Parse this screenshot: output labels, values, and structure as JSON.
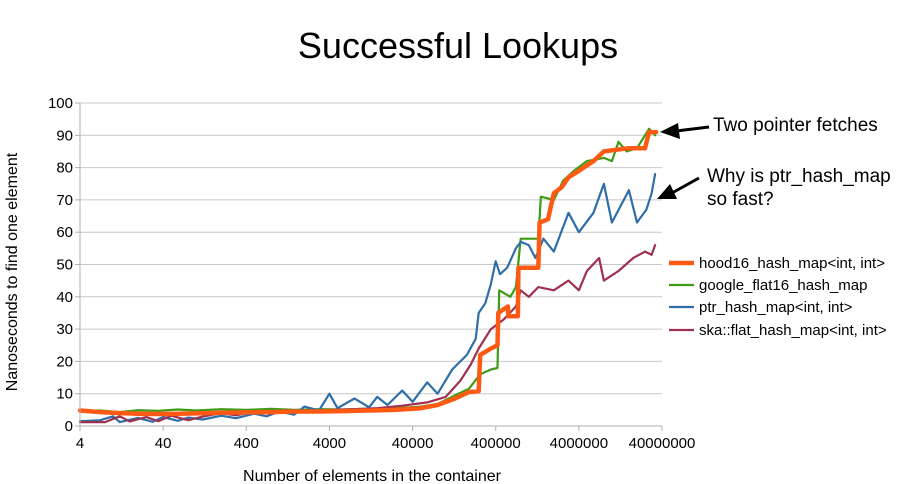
{
  "chart_data": {
    "type": "line",
    "title": "Successful Lookups",
    "xlabel": "Number of elements in the container",
    "ylabel": "Nanoseconds to find one element",
    "x_scale": "log",
    "xlim": [
      4,
      40000000
    ],
    "ylim": [
      0,
      100
    ],
    "x_ticks": [
      "4",
      "40",
      "400",
      "4000",
      "40000",
      "400000",
      "4000000",
      "40000000"
    ],
    "y_ticks": [
      "0",
      "10",
      "20",
      "30",
      "40",
      "50",
      "60",
      "70",
      "80",
      "90",
      "100"
    ],
    "grid": "horizontal",
    "legend_position": "right",
    "series": [
      {
        "name": "hood16_hash_map<int, int>",
        "color": "#ff5a14",
        "points": [
          [
            4,
            4.8
          ],
          [
            7,
            4.3
          ],
          [
            12,
            4.0
          ],
          [
            20,
            3.8
          ],
          [
            35,
            3.7
          ],
          [
            60,
            3.8
          ],
          [
            100,
            3.9
          ],
          [
            200,
            4.1
          ],
          [
            400,
            4.2
          ],
          [
            800,
            4.3
          ],
          [
            1500,
            4.5
          ],
          [
            3000,
            4.5
          ],
          [
            6000,
            4.6
          ],
          [
            12000,
            4.8
          ],
          [
            25000,
            5.0
          ],
          [
            50000,
            5.5
          ],
          [
            80000,
            6.5
          ],
          [
            130000,
            8.5
          ],
          [
            190000,
            10.5
          ],
          [
            250000,
            10.8
          ],
          [
            260000,
            22
          ],
          [
            350000,
            24
          ],
          [
            420000,
            25
          ],
          [
            430000,
            35
          ],
          [
            560000,
            37
          ],
          [
            570000,
            34
          ],
          [
            740000,
            34
          ],
          [
            750000,
            49
          ],
          [
            1300000,
            49
          ],
          [
            1350000,
            63
          ],
          [
            1700000,
            64
          ],
          [
            2000000,
            72
          ],
          [
            2500000,
            74
          ],
          [
            3000000,
            77
          ],
          [
            4000000,
            79
          ],
          [
            6000000,
            82
          ],
          [
            8000000,
            85
          ],
          [
            16000000,
            86
          ],
          [
            25000000,
            86
          ],
          [
            28000000,
            91
          ],
          [
            34000000,
            91
          ]
        ]
      },
      {
        "name": "google_flat16_hash_map",
        "color": "#3d9b14",
        "points": [
          [
            4,
            4.5
          ],
          [
            7,
            4.8
          ],
          [
            12,
            4.3
          ],
          [
            20,
            4.9
          ],
          [
            35,
            4.7
          ],
          [
            60,
            5.1
          ],
          [
            100,
            4.8
          ],
          [
            200,
            5.2
          ],
          [
            400,
            5.0
          ],
          [
            800,
            5.3
          ],
          [
            1500,
            5.0
          ],
          [
            3000,
            5.2
          ],
          [
            6000,
            5.1
          ],
          [
            12000,
            5.4
          ],
          [
            25000,
            5.5
          ],
          [
            50000,
            6.0
          ],
          [
            80000,
            6.8
          ],
          [
            130000,
            9.5
          ],
          [
            190000,
            11.5
          ],
          [
            260000,
            16
          ],
          [
            350000,
            17.5
          ],
          [
            420000,
            18
          ],
          [
            440000,
            42
          ],
          [
            600000,
            40
          ],
          [
            700000,
            43
          ],
          [
            800000,
            58
          ],
          [
            1300000,
            58
          ],
          [
            1400000,
            71
          ],
          [
            2000000,
            70
          ],
          [
            2600000,
            76
          ],
          [
            3500000,
            79
          ],
          [
            5000000,
            82
          ],
          [
            8000000,
            83
          ],
          [
            10000000,
            82
          ],
          [
            12000000,
            88
          ],
          [
            15000000,
            85
          ],
          [
            20000000,
            86
          ],
          [
            28000000,
            92
          ],
          [
            33000000,
            90
          ]
        ]
      },
      {
        "name": "ptr_hash_map<int, int>",
        "color": "#2f6ea8",
        "points": [
          [
            4,
            1.5
          ],
          [
            7,
            1.8
          ],
          [
            10,
            3.0
          ],
          [
            12,
            1.2
          ],
          [
            20,
            2.5
          ],
          [
            30,
            1.3
          ],
          [
            40,
            2.8
          ],
          [
            60,
            1.6
          ],
          [
            80,
            2.6
          ],
          [
            120,
            2.0
          ],
          [
            200,
            3.2
          ],
          [
            300,
            2.4
          ],
          [
            500,
            3.8
          ],
          [
            700,
            3.0
          ],
          [
            1000,
            4.5
          ],
          [
            1500,
            3.5
          ],
          [
            2000,
            6.0
          ],
          [
            3000,
            4.8
          ],
          [
            4000,
            10.0
          ],
          [
            5000,
            5.5
          ],
          [
            8000,
            8.5
          ],
          [
            12000,
            5.8
          ],
          [
            15000,
            9.0
          ],
          [
            20000,
            6.5
          ],
          [
            30000,
            11.0
          ],
          [
            40000,
            7.5
          ],
          [
            60000,
            13.5
          ],
          [
            80000,
            10.0
          ],
          [
            120000,
            17.5
          ],
          [
            180000,
            22
          ],
          [
            230000,
            27
          ],
          [
            250000,
            35
          ],
          [
            300000,
            38
          ],
          [
            350000,
            44
          ],
          [
            400000,
            51
          ],
          [
            450000,
            47
          ],
          [
            550000,
            49
          ],
          [
            700000,
            55
          ],
          [
            800000,
            57
          ],
          [
            1000000,
            56
          ],
          [
            1200000,
            52
          ],
          [
            1500000,
            58
          ],
          [
            2000000,
            54
          ],
          [
            3000000,
            66
          ],
          [
            4000000,
            60
          ],
          [
            6000000,
            66
          ],
          [
            8000000,
            75
          ],
          [
            10000000,
            63
          ],
          [
            16000000,
            73
          ],
          [
            20000000,
            63
          ],
          [
            26000000,
            67
          ],
          [
            30000000,
            72
          ],
          [
            33000000,
            78
          ]
        ]
      },
      {
        "name": "ska::flat_hash_map<int, int>",
        "color": "#a0304f",
        "points": [
          [
            4,
            1.2
          ],
          [
            8,
            1.2
          ],
          [
            12,
            3.0
          ],
          [
            16,
            1.4
          ],
          [
            25,
            2.8
          ],
          [
            35,
            1.5
          ],
          [
            50,
            3.2
          ],
          [
            80,
            1.8
          ],
          [
            120,
            2.9
          ],
          [
            200,
            4.0
          ],
          [
            300,
            3.3
          ],
          [
            500,
            4.5
          ],
          [
            800,
            3.8
          ],
          [
            1200,
            4.9
          ],
          [
            2000,
            4.2
          ],
          [
            4000,
            5.0
          ],
          [
            8000,
            5.2
          ],
          [
            15000,
            5.5
          ],
          [
            30000,
            6.3
          ],
          [
            60000,
            7.3
          ],
          [
            100000,
            9.0
          ],
          [
            150000,
            14
          ],
          [
            200000,
            19
          ],
          [
            250000,
            24
          ],
          [
            350000,
            30
          ],
          [
            500000,
            33
          ],
          [
            700000,
            37
          ],
          [
            800000,
            42
          ],
          [
            1000000,
            40
          ],
          [
            1300000,
            43
          ],
          [
            2000000,
            42
          ],
          [
            3000000,
            45
          ],
          [
            4000000,
            42
          ],
          [
            5000000,
            48
          ],
          [
            7000000,
            52
          ],
          [
            8000000,
            45
          ],
          [
            12000000,
            48
          ],
          [
            18000000,
            52
          ],
          [
            25000000,
            54
          ],
          [
            30000000,
            53
          ],
          [
            33000000,
            56
          ]
        ]
      }
    ],
    "annotations": [
      {
        "text": "Two pointer fetches",
        "target_x": 34000000,
        "target_y": 91
      },
      {
        "text_lines": [
          "Why is ptr_hash_map",
          "so fast?"
        ],
        "target_x": 33000000,
        "target_y": 71
      }
    ]
  }
}
